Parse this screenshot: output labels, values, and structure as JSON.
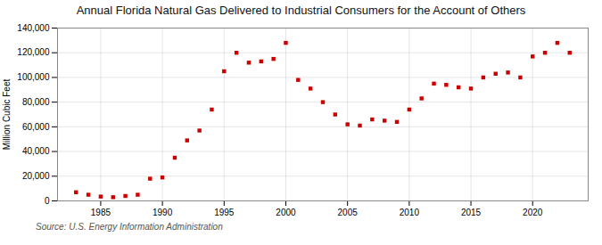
{
  "chart_data": {
    "type": "scatter",
    "title": "Annual Florida Natural Gas Delivered to Industrial Consumers for the Account of Others",
    "ylabel": "Million Cubic Feet",
    "annotations": [
      "Source: U.S. Energy Information Administration"
    ],
    "x": [
      1983,
      1984,
      1985,
      1986,
      1987,
      1988,
      1989,
      1990,
      1991,
      1992,
      1993,
      1994,
      1995,
      1996,
      1997,
      1998,
      1999,
      2000,
      2001,
      2002,
      2003,
      2004,
      2005,
      2006,
      2007,
      2008,
      2009,
      2010,
      2011,
      2012,
      2013,
      2014,
      2015,
      2016,
      2017,
      2018,
      2019,
      2020,
      2021,
      2022,
      2023
    ],
    "values": [
      7000,
      5000,
      3500,
      3000,
      4000,
      5000,
      18000,
      19000,
      35000,
      49000,
      57000,
      74000,
      105000,
      120000,
      112000,
      113000,
      115000,
      128000,
      98000,
      91000,
      80000,
      70000,
      62000,
      61000,
      66000,
      65000,
      64000,
      74000,
      83000,
      95000,
      94000,
      92000,
      91000,
      100000,
      103000,
      104000,
      100000,
      117000,
      120000,
      128000,
      120000
    ],
    "color": "#cc0000",
    "marker": "square",
    "grid": true,
    "xlim": [
      1981.5,
      2024.5
    ],
    "xticks": [
      1985,
      1990,
      1995,
      2000,
      2005,
      2010,
      2015,
      2020
    ],
    "ylim": [
      0,
      140000
    ],
    "yticks": [
      0,
      {
        "value": 20000,
        "label": "20,000"
      },
      {
        "value": 40000,
        "label": "40,000"
      },
      {
        "value": 60000,
        "label": "60,000"
      },
      {
        "value": 80000,
        "label": "80,000"
      },
      {
        "value": 100000,
        "label": "100,000"
      },
      {
        "value": 120000,
        "label": "120,000"
      },
      {
        "value": 140000,
        "label": "140,000"
      }
    ]
  }
}
